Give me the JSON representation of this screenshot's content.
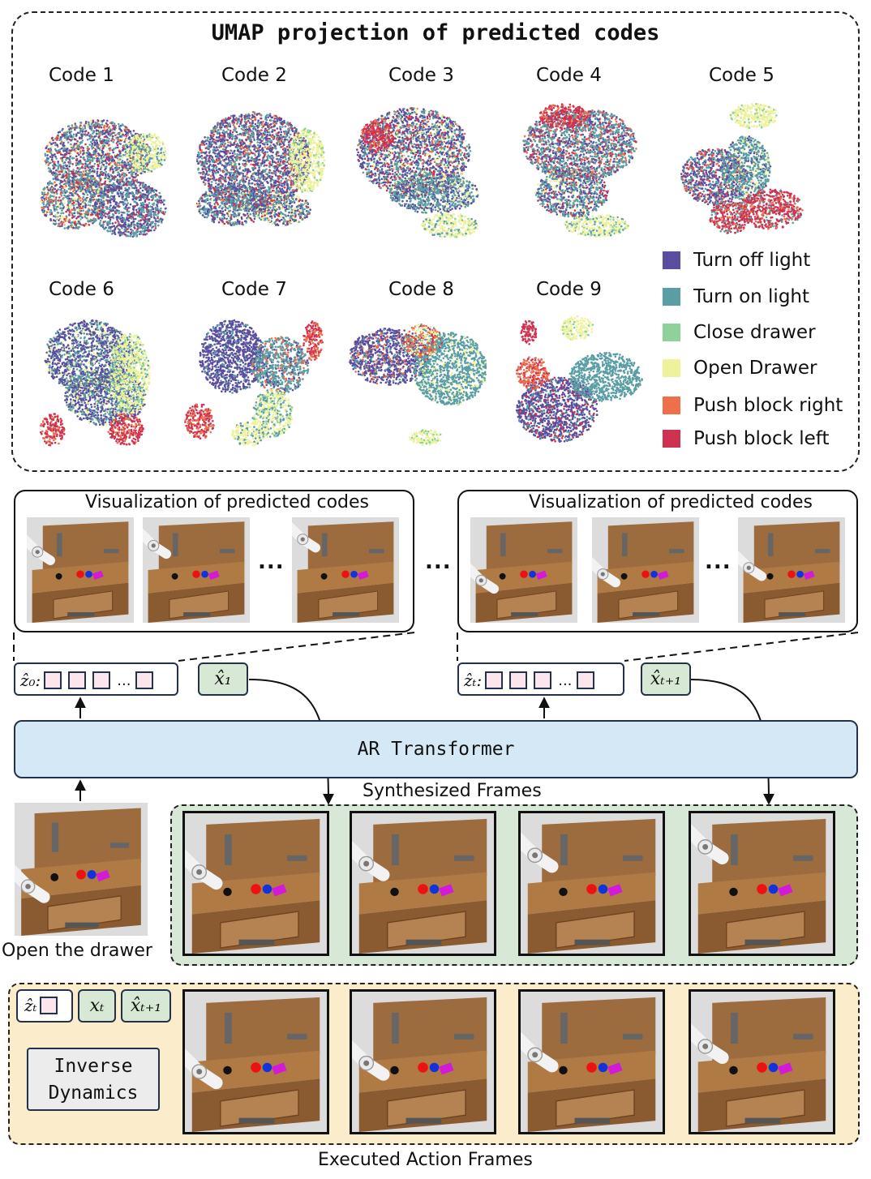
{
  "umap": {
    "title": "UMAP projection of predicted codes",
    "codes": [
      "Code 1",
      "Code 2",
      "Code 3",
      "Code 4",
      "Code 5",
      "Code 6",
      "Code 7",
      "Code 8",
      "Code 9"
    ],
    "legend": [
      {
        "label": "Turn off light",
        "color": "#5b4ea0"
      },
      {
        "label": "Turn on light",
        "color": "#5a9ea5"
      },
      {
        "label": "Close drawer",
        "color": "#8fd19a"
      },
      {
        "label": "Open Drawer",
        "color": "#eef29a"
      },
      {
        "label": "Push block right",
        "color": "#ef6f4b"
      },
      {
        "label": "Push block left",
        "color": "#cf3250"
      }
    ]
  },
  "visualization": {
    "left_title": "Visualization of predicted codes",
    "right_title": "Visualization of predicted codes",
    "ellipsis": "...",
    "middle_ellipsis": "..."
  },
  "tokens": {
    "z0": "ẑ₀:",
    "zt": "ẑₜ:",
    "slot_ellipsis": "...",
    "x1": "x̂₁",
    "xt1": "x̂ₜ₊₁"
  },
  "ar_transformer": "AR Transformer",
  "synthesized": {
    "caption": "Synthesized Frames"
  },
  "input": {
    "caption": "Open the drawer"
  },
  "executed": {
    "caption": "Executed Action Frames",
    "zt_label": "ẑₜ",
    "xt_label": "xₜ",
    "xt1_label": "x̂ₜ₊₁",
    "inverse_line1": "Inverse",
    "inverse_line2": "Dynamics"
  }
}
